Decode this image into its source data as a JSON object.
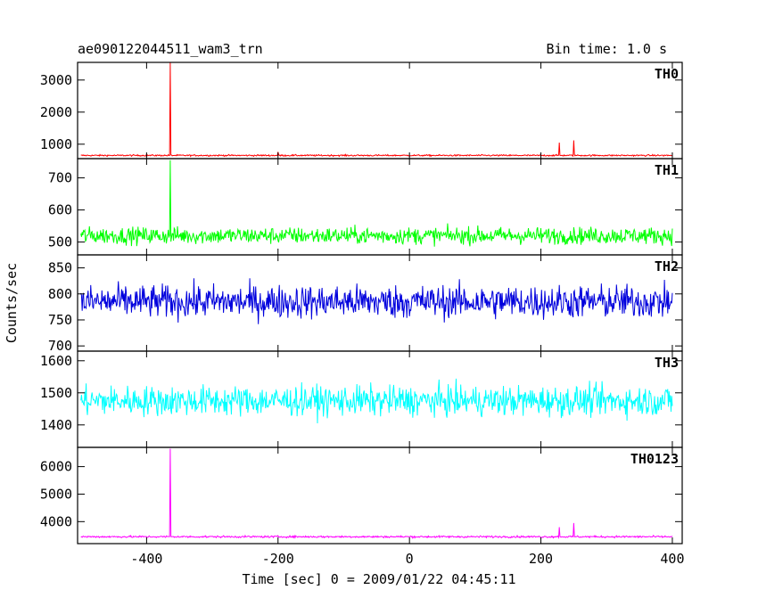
{
  "chart_data": {
    "type": "line",
    "title": "ae090122044511_wam3_trn",
    "bin_time_label": "Bin time: 1.0 s",
    "xlabel": "Time [sec] 0 = 2009/01/22 04:45:11",
    "ylabel": "Counts/sec",
    "xlim": [
      -505,
      415
    ],
    "x_ticks": [
      -400,
      -200,
      0,
      200,
      400
    ],
    "x_range_data": [
      -500,
      400
    ],
    "panels": [
      {
        "name": "TH0",
        "color": "#ff0000",
        "ylim": [
          550,
          3550
        ],
        "y_ticks": [
          1000,
          2000,
          3000
        ],
        "baseline": 650,
        "noise": 40,
        "spikes": [
          {
            "x": -364,
            "y": 3550
          },
          {
            "x": 228,
            "y": 1050
          },
          {
            "x": 250,
            "y": 1120
          },
          {
            "x": -200,
            "y": 760
          }
        ]
      },
      {
        "name": "TH1",
        "color": "#00ff00",
        "ylim": [
          460,
          760
        ],
        "y_ticks": [
          500,
          600,
          700
        ],
        "baseline": 520,
        "noise": 45,
        "spikes": [
          {
            "x": -364,
            "y": 755
          }
        ]
      },
      {
        "name": "TH2",
        "color": "#0000dd",
        "ylim": [
          690,
          875
        ],
        "y_ticks": [
          700,
          750,
          800,
          850
        ],
        "baseline": 785,
        "noise": 55,
        "spikes": []
      },
      {
        "name": "TH3",
        "color": "#00ffff",
        "ylim": [
          1330,
          1630
        ],
        "y_ticks": [
          1400,
          1500,
          1600
        ],
        "baseline": 1475,
        "noise": 80,
        "spikes": []
      },
      {
        "name": "TH0123",
        "color": "#ff00ff",
        "ylim": [
          3200,
          6700
        ],
        "y_ticks": [
          4000,
          5000,
          6000
        ],
        "baseline": 3450,
        "noise": 60,
        "spikes": [
          {
            "x": -364,
            "y": 6650
          },
          {
            "x": 228,
            "y": 3800
          },
          {
            "x": 250,
            "y": 3950
          }
        ]
      }
    ]
  }
}
